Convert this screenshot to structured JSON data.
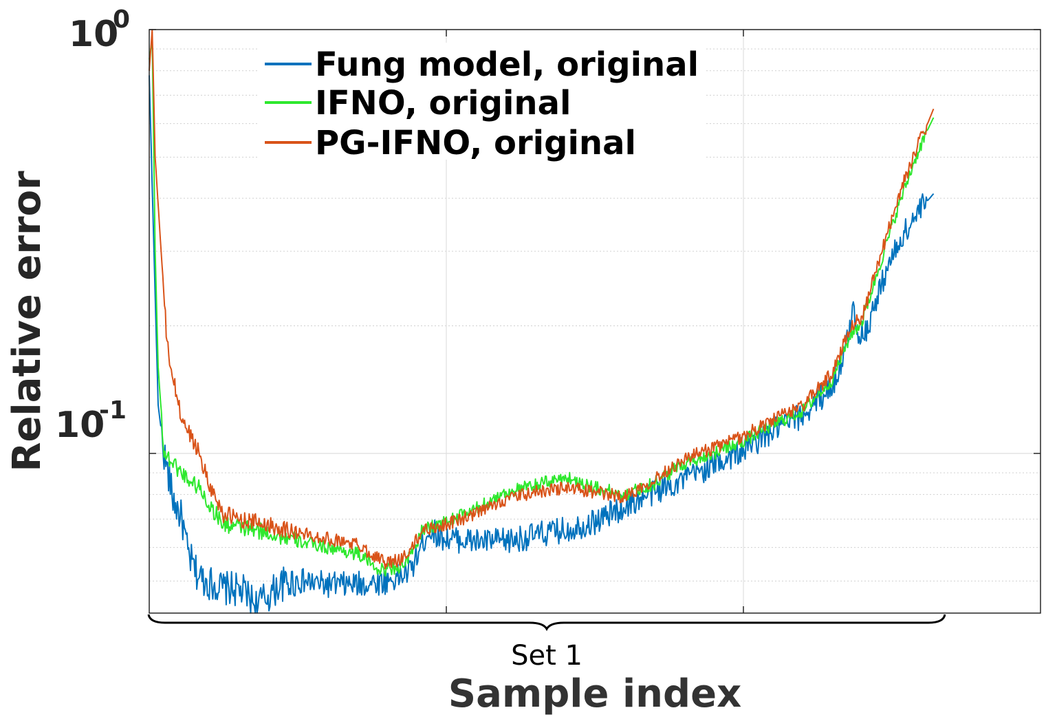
{
  "chart_data": {
    "type": "line",
    "title": "",
    "xlabel": "Sample index",
    "ylabel": "Relative error",
    "yscale": "log",
    "ylim": [
      0.042,
      1
    ],
    "xlim": [
      0,
      1500
    ],
    "yticks": [
      {
        "base": "10",
        "exp": "-1",
        "value": 0.1
      },
      {
        "base": "10",
        "exp": "0",
        "value": 1
      }
    ],
    "xtick_values": [
      500,
      1000
    ],
    "grid": true,
    "legend_position": "top-left",
    "bracket_label": "Set 1",
    "bracket_range": [
      0,
      1340
    ],
    "series": [
      {
        "name": "Fung model, original",
        "color": "#0072BD",
        "points": [
          [
            0,
            0.78
          ],
          [
            8,
            0.3
          ],
          [
            15,
            0.13
          ],
          [
            25,
            0.1
          ],
          [
            40,
            0.078
          ],
          [
            55,
            0.07
          ],
          [
            65,
            0.058
          ],
          [
            80,
            0.052
          ],
          [
            95,
            0.05
          ],
          [
            110,
            0.049
          ],
          [
            125,
            0.048
          ],
          [
            140,
            0.048
          ],
          [
            160,
            0.047
          ],
          [
            180,
            0.044
          ],
          [
            200,
            0.046
          ],
          [
            220,
            0.049
          ],
          [
            250,
            0.05
          ],
          [
            300,
            0.049
          ],
          [
            350,
            0.049
          ],
          [
            400,
            0.05
          ],
          [
            420,
            0.051
          ],
          [
            440,
            0.053
          ],
          [
            470,
            0.066
          ],
          [
            500,
            0.063
          ],
          [
            550,
            0.062
          ],
          [
            600,
            0.062
          ],
          [
            650,
            0.064
          ],
          [
            700,
            0.066
          ],
          [
            750,
            0.069
          ],
          [
            800,
            0.075
          ],
          [
            850,
            0.081
          ],
          [
            900,
            0.087
          ],
          [
            950,
            0.094
          ],
          [
            1000,
            0.102
          ],
          [
            1050,
            0.113
          ],
          [
            1100,
            0.123
          ],
          [
            1150,
            0.145
          ],
          [
            1170,
            0.17
          ],
          [
            1185,
            0.22
          ],
          [
            1195,
            0.188
          ],
          [
            1210,
            0.2
          ],
          [
            1240,
            0.27
          ],
          [
            1270,
            0.33
          ],
          [
            1300,
            0.38
          ],
          [
            1320,
            0.41
          ],
          [
            1320,
            0.41
          ]
        ]
      },
      {
        "name": "IFNO, original",
        "color": "#2EE82E",
        "points": [
          [
            0,
            0.85
          ],
          [
            5,
            0.95
          ],
          [
            10,
            0.3
          ],
          [
            15,
            0.16
          ],
          [
            25,
            0.1
          ],
          [
            40,
            0.095
          ],
          [
            55,
            0.09
          ],
          [
            70,
            0.086
          ],
          [
            85,
            0.083
          ],
          [
            100,
            0.076
          ],
          [
            125,
            0.068
          ],
          [
            150,
            0.067
          ],
          [
            200,
            0.065
          ],
          [
            250,
            0.062
          ],
          [
            300,
            0.06
          ],
          [
            350,
            0.058
          ],
          [
            390,
            0.053
          ],
          [
            420,
            0.054
          ],
          [
            440,
            0.057
          ],
          [
            460,
            0.066
          ],
          [
            500,
            0.069
          ],
          [
            550,
            0.074
          ],
          [
            600,
            0.081
          ],
          [
            650,
            0.084
          ],
          [
            700,
            0.088
          ],
          [
            750,
            0.083
          ],
          [
            800,
            0.08
          ],
          [
            850,
            0.085
          ],
          [
            900,
            0.095
          ],
          [
            950,
            0.1
          ],
          [
            1000,
            0.107
          ],
          [
            1050,
            0.117
          ],
          [
            1100,
            0.126
          ],
          [
            1150,
            0.15
          ],
          [
            1180,
            0.19
          ],
          [
            1200,
            0.205
          ],
          [
            1230,
            0.28
          ],
          [
            1260,
            0.38
          ],
          [
            1290,
            0.5
          ],
          [
            1310,
            0.58
          ],
          [
            1320,
            0.62
          ],
          [
            1320,
            0.62
          ]
        ]
      },
      {
        "name": "PG-IFNO, original",
        "color": "#D95319",
        "points": [
          [
            0,
            0.8
          ],
          [
            5,
            1.0
          ],
          [
            10,
            0.5
          ],
          [
            20,
            0.3
          ],
          [
            30,
            0.18
          ],
          [
            40,
            0.15
          ],
          [
            55,
            0.12
          ],
          [
            70,
            0.11
          ],
          [
            85,
            0.1
          ],
          [
            100,
            0.085
          ],
          [
            125,
            0.072
          ],
          [
            150,
            0.07
          ],
          [
            200,
            0.068
          ],
          [
            250,
            0.065
          ],
          [
            300,
            0.063
          ],
          [
            350,
            0.061
          ],
          [
            400,
            0.055
          ],
          [
            420,
            0.056
          ],
          [
            440,
            0.059
          ],
          [
            460,
            0.066
          ],
          [
            500,
            0.068
          ],
          [
            550,
            0.072
          ],
          [
            600,
            0.078
          ],
          [
            650,
            0.081
          ],
          [
            700,
            0.083
          ],
          [
            750,
            0.081
          ],
          [
            800,
            0.079
          ],
          [
            850,
            0.087
          ],
          [
            900,
            0.097
          ],
          [
            950,
            0.103
          ],
          [
            1000,
            0.11
          ],
          [
            1050,
            0.12
          ],
          [
            1100,
            0.13
          ],
          [
            1150,
            0.155
          ],
          [
            1180,
            0.2
          ],
          [
            1200,
            0.21
          ],
          [
            1230,
            0.29
          ],
          [
            1260,
            0.4
          ],
          [
            1290,
            0.52
          ],
          [
            1310,
            0.6
          ],
          [
            1320,
            0.65
          ],
          [
            1320,
            0.65
          ]
        ]
      }
    ]
  }
}
